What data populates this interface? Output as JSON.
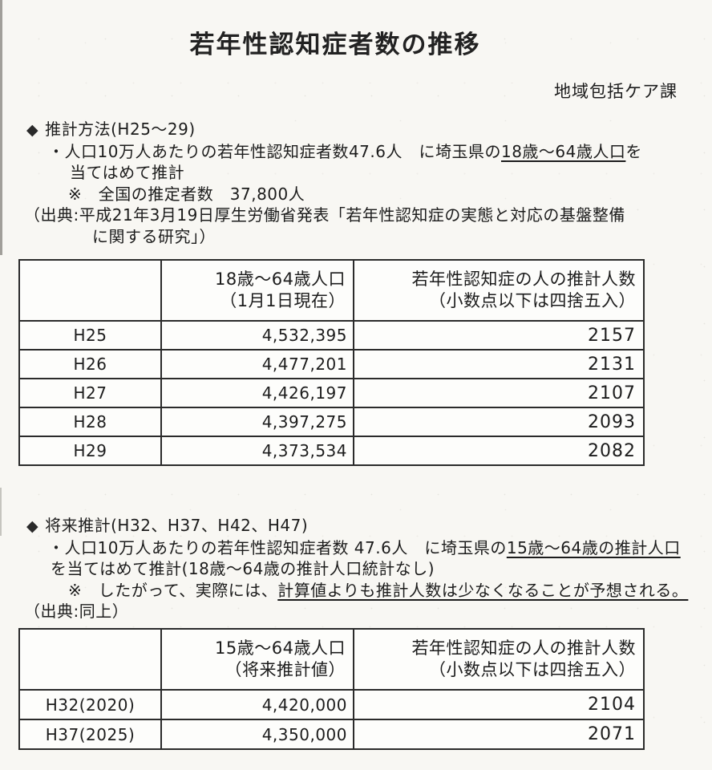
{
  "colors": {
    "paper": "#f8f7f3",
    "ink": "#1c1c1c",
    "table_border": "#2b2b2b"
  },
  "page": {
    "title": "若年性認知症者数の推移",
    "department": "地域包括ケア課"
  },
  "section1": {
    "bullet": "◆",
    "heading": "推計方法(H25～29)",
    "line1_pre": "・人口10万人あたりの若年性認知症者数47.6人　に埼玉県の",
    "line1_underline": "18歳～64歳人口",
    "line1_post": "を",
    "line2": "当てはめて推計",
    "line3": "※　全国の推定者数　37,800人",
    "source_line1": "（出典:平成21年3月19日厚生労働省発表「若年性認知症の実態と対応の基盤整備",
    "source_line2": "に関する研究」）"
  },
  "table1": {
    "header": {
      "col1": "",
      "col2_line1": "18歳～64歳人口",
      "col2_line2": "（1月1日現在）",
      "col3_line1": "若年性認知症の人の推計人数",
      "col3_line2": "（小数点以下は四捨五入）"
    },
    "rows": [
      {
        "year": "H25",
        "population": "4,532,395",
        "estimate": "2157"
      },
      {
        "year": "H26",
        "population": "4,477,201",
        "estimate": "2131"
      },
      {
        "year": "H27",
        "population": "4,426,197",
        "estimate": "2107"
      },
      {
        "year": "H28",
        "population": "4,397,275",
        "estimate": "2093"
      },
      {
        "year": "H29",
        "population": "4,373,534",
        "estimate": "2082"
      }
    ]
  },
  "section2": {
    "bullet": "◆",
    "heading": "将来推計(H32、H37、H42、H47)",
    "line1_pre": "・人口10万人あたりの若年性認知症者数 47.6人　に埼玉県の",
    "line1_underline": "15歳～64歳の推計人口",
    "line2": "を当てはめて推計(18歳～64歳の推計人口統計なし)",
    "line3_pre": "※　したがって、実際には、",
    "line3_underline": "計算値よりも推計人数は少なくなることが予想される。",
    "source": "（出典:同上）"
  },
  "table2": {
    "header": {
      "col1": "",
      "col2_line1": "15歳～64歳人口",
      "col2_line2": "（将来推計値）",
      "col3_line1": "若年性認知症の人の推計人数",
      "col3_line2": "（小数点以下は四捨五入）"
    },
    "rows": [
      {
        "year": "H32(2020)",
        "population": "4,420,000",
        "estimate": "2104"
      },
      {
        "year": "H37(2025)",
        "population": "4,350,000",
        "estimate": "2071"
      }
    ]
  }
}
